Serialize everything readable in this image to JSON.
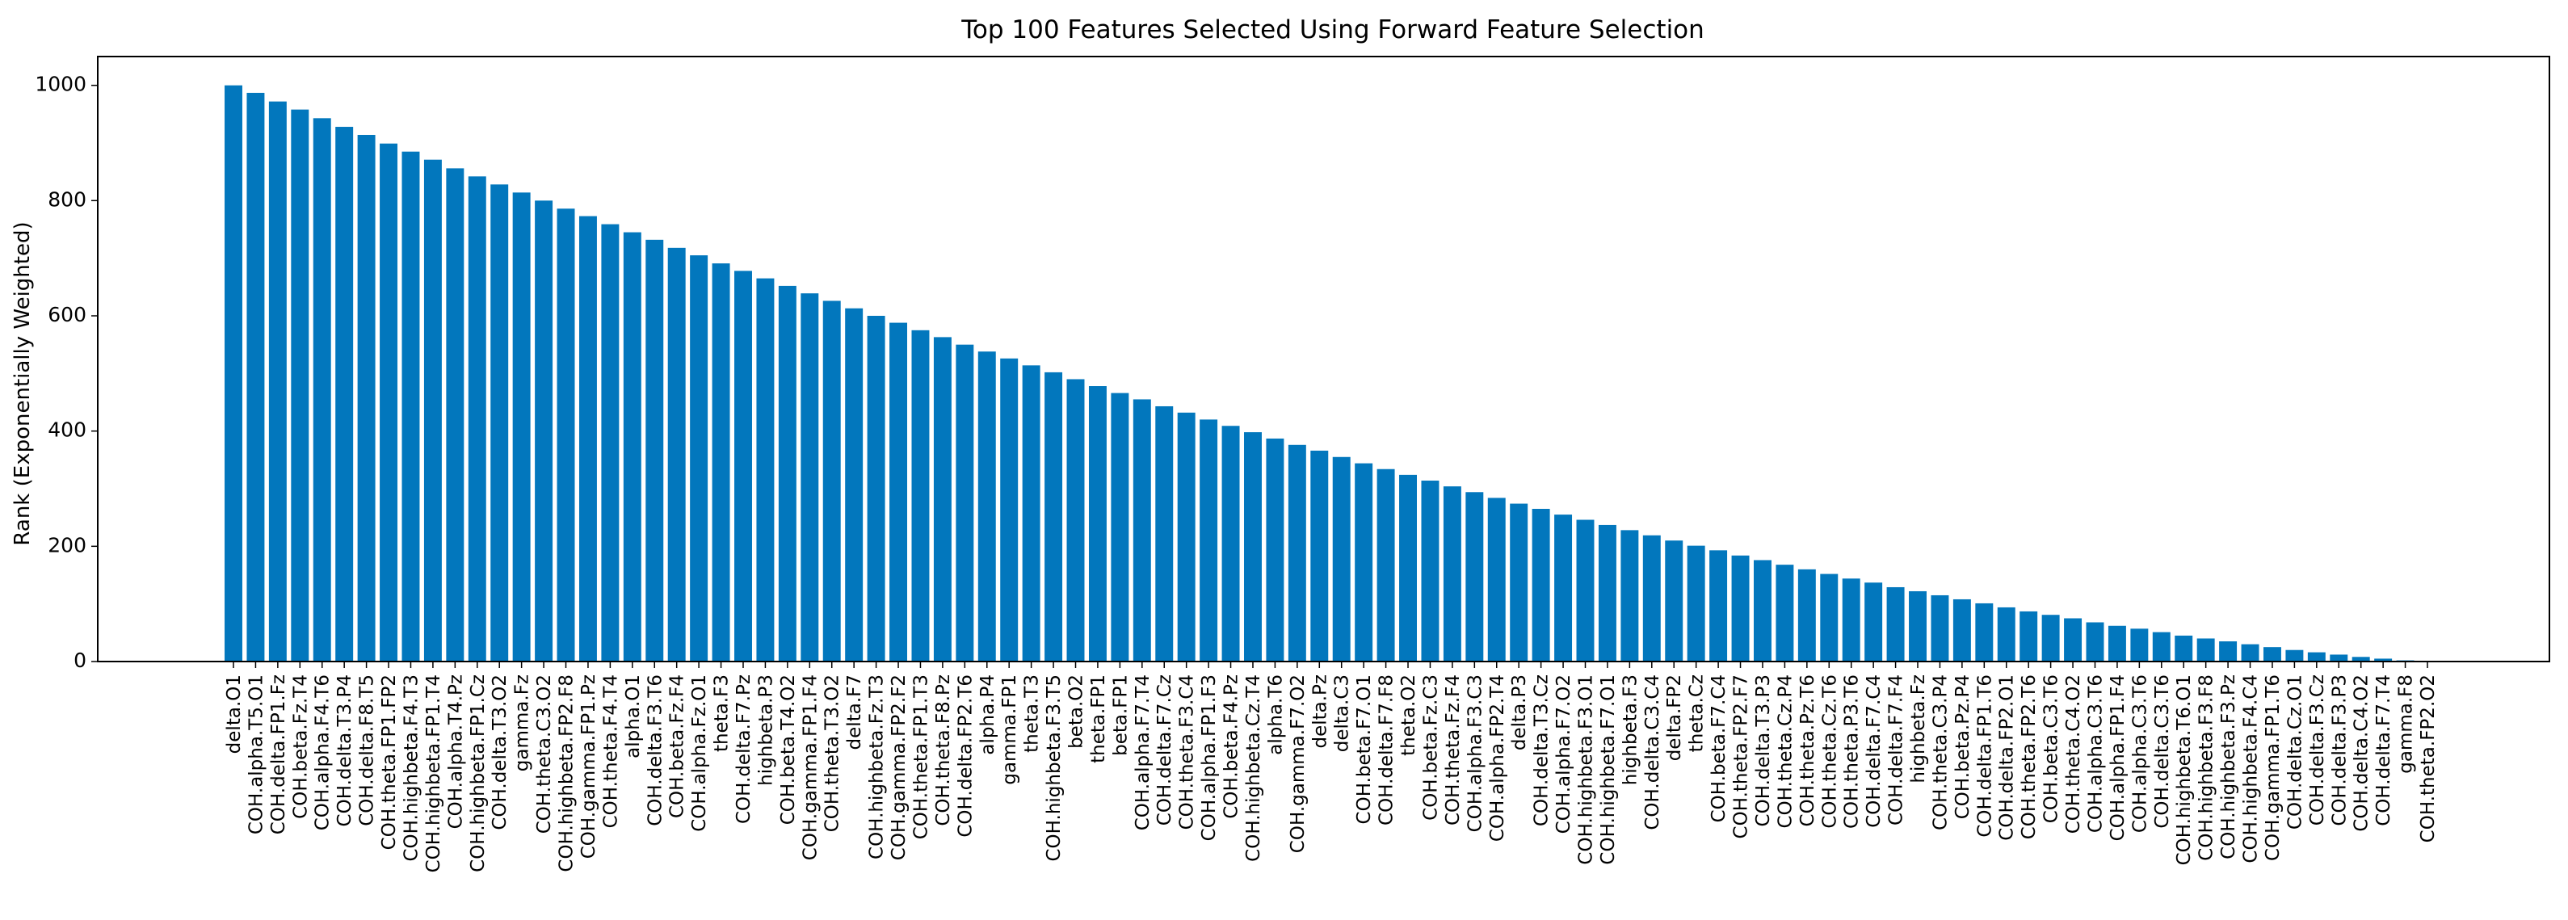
{
  "chart_data": {
    "type": "bar",
    "title": "Top 100 Features Selected Using Forward Feature Selection",
    "xlabel": "",
    "ylabel": "Rank (Exponentially Weighted)",
    "ylim": [
      0,
      1050
    ],
    "yticks": [
      0,
      200,
      400,
      600,
      800,
      1000
    ],
    "grid": false,
    "bar_color": "#0277bd",
    "categories": [
      "delta.O1",
      "COH.alpha.T5.O1",
      "COH.delta.FP1.Fz",
      "COH.beta.Fz.T4",
      "COH.alpha.F4.T6",
      "COH.delta.T3.P4",
      "COH.delta.F8.T5",
      "COH.theta.FP1.FP2",
      "COH.highbeta.F4.T3",
      "COH.highbeta.FP1.T4",
      "COH.alpha.T4.Pz",
      "COH.highbeta.FP1.Cz",
      "COH.delta.T3.O2",
      "gamma.Fz",
      "COH.theta.C3.O2",
      "COH.highbeta.FP2.F8",
      "COH.gamma.FP1.Pz",
      "COH.theta.F4.T4",
      "alpha.O1",
      "COH.delta.F3.T6",
      "COH.beta.Fz.F4",
      "COH.alpha.Fz.O1",
      "theta.F3",
      "COH.delta.F7.Pz",
      "highbeta.P3",
      "COH.beta.T4.O2",
      "COH.gamma.FP1.F4",
      "COH.theta.T3.O2",
      "delta.F7",
      "COH.highbeta.Fz.T3",
      "COH.gamma.FP2.F2",
      "COH.theta.FP1.T3",
      "COH.theta.F8.Pz",
      "COH.delta.FP2.T6",
      "alpha.P4",
      "gamma.FP1",
      "theta.T3",
      "COH.highbeta.F3.T5",
      "beta.O2",
      "theta.FP1",
      "beta.FP1",
      "COH.alpha.F7.T4",
      "COH.delta.F7.Cz",
      "COH.theta.F3.C4",
      "COH.alpha.FP1.F3",
      "COH.beta.F4.Pz",
      "COH.highbeta.Cz.T4",
      "alpha.T6",
      "COH.gamma.F7.O2",
      "delta.Pz",
      "delta.C3",
      "COH.beta.F7.O1",
      "COH.delta.F7.F8",
      "theta.O2",
      "COH.beta.Fz.C3",
      "COH.theta.Fz.F4",
      "COH.alpha.F3.C3",
      "COH.alpha.FP2.T4",
      "delta.P3",
      "COH.delta.T3.Cz",
      "COH.alpha.F7.O2",
      "COH.highbeta.F3.O1",
      "COH.highbeta.F7.O1",
      "highbeta.F3",
      "COH.delta.C3.C4",
      "delta.FP2",
      "theta.Cz",
      "COH.beta.F7.C4",
      "COH.theta.FP2.F7",
      "COH.delta.T3.P3",
      "COH.theta.Cz.P4",
      "COH.theta.Pz.T6",
      "COH.theta.Cz.T6",
      "COH.theta.P3.T6",
      "COH.delta.F7.C4",
      "COH.delta.F7.F4",
      "highbeta.Fz",
      "COH.theta.C3.P4",
      "COH.beta.Pz.P4",
      "COH.delta.FP1.T6",
      "COH.delta.FP2.O1",
      "COH.theta.FP2.T6",
      "COH.beta.C3.T6",
      "COH.theta.C4.O2",
      "COH.alpha.C3.T6",
      "COH.alpha.FP1.F4",
      "COH.alpha.C3.T6",
      "COH.delta.C3.T6",
      "COH.highbeta.T6.O1",
      "COH.highbeta.F3.F8",
      "COH.highbeta.F3.Pz",
      "COH.highbeta.F4.C4",
      "COH.gamma.FP1.T6",
      "COH.delta.Cz.O1",
      "COH.delta.F3.Cz",
      "COH.delta.F3.P3",
      "COH.delta.C4.O2",
      "COH.delta.F7.T4",
      "gamma.F8",
      "COH.theta.FP2.O2"
    ],
    "values": [
      1000,
      987,
      972,
      958,
      943,
      928,
      914,
      899,
      885,
      871,
      856,
      842,
      828,
      814,
      800,
      786,
      773,
      759,
      745,
      732,
      718,
      705,
      691,
      678,
      665,
      652,
      639,
      626,
      613,
      600,
      588,
      575,
      563,
      550,
      538,
      526,
      514,
      502,
      490,
      478,
      466,
      455,
      443,
      432,
      420,
      409,
      398,
      387,
      376,
      366,
      355,
      344,
      334,
      324,
      314,
      304,
      294,
      284,
      274,
      265,
      255,
      246,
      237,
      228,
      219,
      210,
      201,
      193,
      184,
      176,
      168,
      160,
      152,
      144,
      137,
      129,
      122,
      115,
      108,
      101,
      94,
      87,
      81,
      75,
      68,
      62,
      57,
      51,
      45,
      40,
      35,
      30,
      25,
      20,
      16,
      12,
      8,
      5,
      2,
      1
    ]
  }
}
